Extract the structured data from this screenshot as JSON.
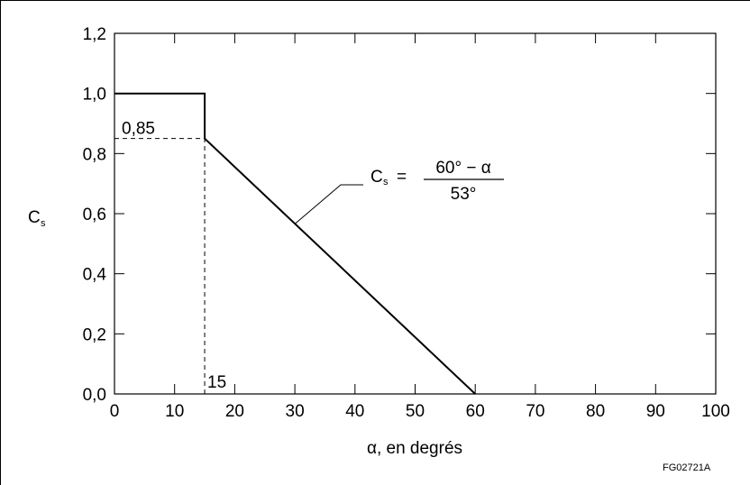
{
  "chart_data": {
    "type": "line",
    "xlabel": "α, en degrés",
    "ylabel": "C",
    "ylabel_subscript": "s",
    "xlim": [
      0,
      100
    ],
    "ylim": [
      0.0,
      1.2
    ],
    "x_ticks": [
      0,
      10,
      20,
      30,
      40,
      50,
      60,
      70,
      80,
      90,
      100
    ],
    "x_tick_labels": [
      "0",
      "10",
      "20",
      "30",
      "40",
      "50",
      "60",
      "70",
      "80",
      "90",
      "100"
    ],
    "y_ticks": [
      0.0,
      0.2,
      0.4,
      0.6,
      0.8,
      1.0,
      1.2
    ],
    "y_tick_labels": [
      "0,0",
      "0,2",
      "0,4",
      "0,6",
      "0,8",
      "1,0",
      "1,2"
    ],
    "grid": false,
    "series": [
      {
        "x": [
          0,
          15,
          15,
          60
        ],
        "y": [
          1.0,
          1.0,
          0.85,
          0.0
        ]
      }
    ],
    "reference_lines": [
      {
        "label": "0,85",
        "x": [
          0,
          15
        ],
        "y": [
          0.85,
          0.85
        ],
        "style": "dashed"
      },
      {
        "label": "15",
        "x": [
          15,
          15
        ],
        "y": [
          0.0,
          0.85
        ],
        "style": "dashed"
      }
    ],
    "formula_annotation": {
      "lhs_main": "C",
      "lhs_subscript": "s",
      "equals": "=",
      "numerator": "60° − α",
      "denominator": "53°",
      "points_to": {
        "x": 30,
        "y": 0.566
      }
    }
  },
  "figure_code": "FG02721A"
}
